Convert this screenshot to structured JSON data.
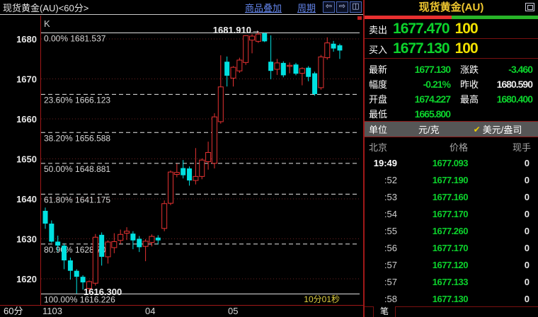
{
  "chart": {
    "title": "现货黄金(AU)<60分>",
    "toolbar": {
      "overlay_label": "商品叠加",
      "period_label": "周期",
      "prev_icon": "⇦",
      "next_icon": "⇨",
      "layout_icon": "◫"
    },
    "k_label": "K",
    "interval_label": "60分",
    "countdown": "10分01秒"
  },
  "chart_data": {
    "type": "candlestick",
    "title": "现货黄金(AU) 60分钟K线",
    "ylim": [
      1613,
      1685
    ],
    "y_ticks": [
      1680,
      1670,
      1660,
      1650,
      1640,
      1630,
      1620
    ],
    "x_labels": [
      "1103",
      "04",
      "05"
    ],
    "grid": "horizontal-dotted",
    "up_color": "#e63232",
    "down_color": "#00e0e0",
    "fib_levels": [
      {
        "pct": "0.00%",
        "price": "1681.537",
        "solid": true
      },
      {
        "pct": "23.60%",
        "price": "1666.123",
        "solid": false
      },
      {
        "pct": "38.20%",
        "price": "1656.588",
        "solid": false
      },
      {
        "pct": "50.00%",
        "price": "1648.881",
        "solid": false
      },
      {
        "pct": "61.80%",
        "price": "1641.175",
        "solid": false
      },
      {
        "pct": "80.90%",
        "price": "1628.700",
        "solid": false
      },
      {
        "pct": "100.00%",
        "price": "1616.226",
        "solid": true
      }
    ],
    "annotations": {
      "high_label": "1681.910",
      "high_arrow": "→",
      "low_label": "1616.300"
    },
    "candles": [
      [
        1637.0,
        1637.8,
        1632.5,
        1633.8
      ],
      [
        1633.8,
        1634.6,
        1629.0,
        1629.3
      ],
      [
        1629.3,
        1630.8,
        1626.8,
        1628.3
      ],
      [
        1628.3,
        1628.9,
        1622.4,
        1624.6
      ],
      [
        1624.6,
        1625.3,
        1619.8,
        1622.0
      ],
      [
        1622.0,
        1622.4,
        1616.3,
        1620.5
      ],
      [
        1620.5,
        1620.9,
        1617.3,
        1619.1
      ],
      [
        1617.6,
        1619.6,
        1616.8,
        1619.3
      ],
      [
        1618.9,
        1631.2,
        1618.3,
        1630.4
      ],
      [
        1631.0,
        1631.6,
        1623.3,
        1625.5
      ],
      [
        1625.5,
        1629.6,
        1623.8,
        1629.2
      ],
      [
        1627.8,
        1631.4,
        1626.4,
        1629.3
      ],
      [
        1629.6,
        1632.3,
        1628.7,
        1631.1
      ],
      [
        1631.4,
        1632.9,
        1629.7,
        1631.9
      ],
      [
        1631.3,
        1631.9,
        1627.4,
        1629.6
      ],
      [
        1630.0,
        1630.7,
        1626.7,
        1627.9
      ],
      [
        1628.1,
        1629.9,
        1624.4,
        1629.4
      ],
      [
        1629.1,
        1631.1,
        1628.1,
        1630.6
      ],
      [
        1630.3,
        1630.9,
        1628.6,
        1629.6
      ],
      [
        1632.6,
        1639.6,
        1631.9,
        1638.8
      ],
      [
        1638.9,
        1647.1,
        1638.4,
        1646.7
      ],
      [
        1646.1,
        1648.8,
        1645.4,
        1646.6
      ],
      [
        1647.7,
        1649.7,
        1645.1,
        1645.9
      ],
      [
        1647.6,
        1648.1,
        1643.3,
        1644.6
      ],
      [
        1644.6,
        1652.7,
        1643.6,
        1645.6
      ],
      [
        1645.6,
        1650.1,
        1644.9,
        1649.7
      ],
      [
        1649.3,
        1654.3,
        1647.3,
        1651.6
      ],
      [
        1648.9,
        1661.4,
        1647.6,
        1660.5
      ],
      [
        1659.3,
        1675.9,
        1658.8,
        1668.0
      ],
      [
        1674.3,
        1675.6,
        1668.1,
        1670.8
      ],
      [
        1670.2,
        1673.2,
        1668.1,
        1672.9
      ],
      [
        1672.0,
        1675.3,
        1671.5,
        1674.7
      ],
      [
        1674.1,
        1680.9,
        1673.5,
        1680.8
      ],
      [
        1679.7,
        1681.2,
        1676.4,
        1680.7
      ],
      [
        1679.4,
        1681.9,
        1679.0,
        1681.2
      ],
      [
        1681.4,
        1681.6,
        1679.2,
        1679.4
      ],
      [
        1674.3,
        1680.9,
        1669.9,
        1672.0
      ],
      [
        1672.4,
        1675.0,
        1671.0,
        1674.0
      ],
      [
        1674.0,
        1674.4,
        1670.4,
        1670.9
      ],
      [
        1673.2,
        1674.1,
        1671.4,
        1673.4
      ],
      [
        1673.6,
        1674.0,
        1670.9,
        1671.3
      ],
      [
        1671.4,
        1672.9,
        1668.4,
        1672.6
      ],
      [
        1672.8,
        1673.2,
        1669.4,
        1670.5
      ],
      [
        1671.4,
        1671.8,
        1665.8,
        1666.2
      ],
      [
        1667.8,
        1676.0,
        1667.3,
        1675.5
      ],
      [
        1675.3,
        1680.4,
        1674.8,
        1679.0
      ],
      [
        1678.8,
        1679.5,
        1676.8,
        1677.6
      ],
      [
        1678.4,
        1678.8,
        1675.0,
        1677.1
      ]
    ]
  },
  "panel": {
    "title": "现货黄金(AU)",
    "sell": {
      "label": "卖出",
      "price": "1677.470",
      "vol": "100"
    },
    "buy": {
      "label": "买入",
      "price": "1677.130",
      "vol": "100"
    },
    "ratio": {
      "red_pct": 50,
      "green_pct": 50
    },
    "stats": {
      "latest": {
        "label": "最新",
        "value": "1677.130"
      },
      "change": {
        "label": "涨跌",
        "value": "-3.460"
      },
      "range": {
        "label": "幅度",
        "value": "-0.21%"
      },
      "prev_close": {
        "label": "昨收",
        "value": "1680.590"
      },
      "open": {
        "label": "开盘",
        "value": "1674.227"
      },
      "high": {
        "label": "最高",
        "value": "1680.400"
      },
      "low": {
        "label": "最低",
        "value": "1665.800"
      }
    },
    "unit": {
      "label": "单位",
      "cny": "元/克",
      "check": "✔",
      "usd": "美元/盎司"
    },
    "table": {
      "headers": [
        "北京",
        "价格",
        "现手"
      ],
      "rows": [
        [
          "19:49",
          "1677.093",
          "0"
        ],
        [
          ":52",
          "1677.190",
          "0"
        ],
        [
          ":53",
          "1677.160",
          "0"
        ],
        [
          ":54",
          "1677.170",
          "0"
        ],
        [
          ":55",
          "1677.260",
          "0"
        ],
        [
          ":56",
          "1677.170",
          "0"
        ],
        [
          ":57",
          "1677.120",
          "0"
        ],
        [
          ":57",
          "1677.133",
          "0"
        ],
        [
          ":58",
          "1677.130",
          "0"
        ]
      ]
    },
    "bottom_tab": "笔"
  }
}
